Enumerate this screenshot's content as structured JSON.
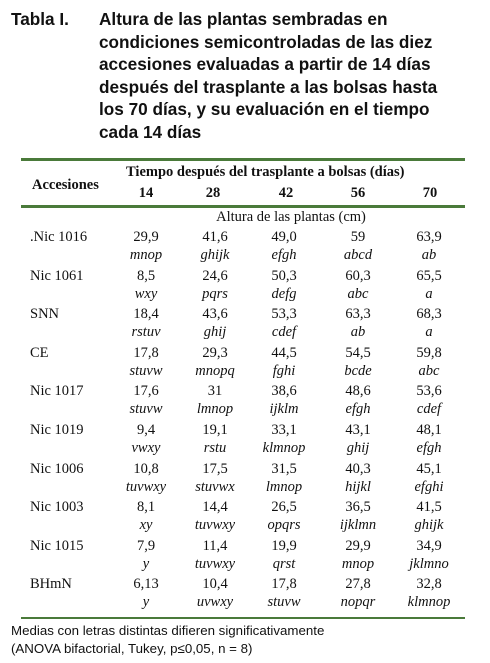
{
  "caption": {
    "label": "Tabla I.",
    "line1": "Altura de las plantas sembradas en",
    "line2": "condiciones semicontroladas de las diez",
    "line3": "accesiones evaluadas a partir de 14 días",
    "line4": "después del trasplante a las bolsas hasta",
    "line5": "los 70 días, y su evaluación en el tiempo",
    "line6": "cada 14 días"
  },
  "table": {
    "row_header": "Accesiones",
    "span_header": "Tiempo después del trasplante a bolsas (días)",
    "days": [
      "14",
      "28",
      "42",
      "56",
      "70"
    ],
    "subheader": "Altura de las plantas (cm)",
    "rows": [
      {
        "name": ".Nic 1016",
        "values": [
          "29,9",
          "41,6",
          "49,0",
          "59",
          "63,9"
        ],
        "letters": [
          "mnop",
          "ghijk",
          "efgh",
          "abcd",
          "ab"
        ]
      },
      {
        "name": "Nic 1061",
        "values": [
          "8,5",
          "24,6",
          "50,3",
          "60,3",
          "65,5"
        ],
        "letters": [
          "wxy",
          "pqrs",
          "defg",
          "abc",
          "a"
        ]
      },
      {
        "name": "SNN",
        "values": [
          "18,4",
          "43,6",
          "53,3",
          "63,3",
          "68,3"
        ],
        "letters": [
          "rstuv",
          "ghij",
          "cdef",
          "ab",
          "a"
        ]
      },
      {
        "name": "CE",
        "values": [
          "17,8",
          "29,3",
          "44,5",
          "54,5",
          "59,8"
        ],
        "letters": [
          "stuvw",
          "mnopq",
          "fghi",
          "bcde",
          "abc"
        ]
      },
      {
        "name": "Nic 1017",
        "values": [
          "17,6",
          "31",
          "38,6",
          "48,6",
          "53,6"
        ],
        "letters": [
          "stuvw",
          "lmnop",
          "ijklm",
          "efgh",
          "cdef"
        ]
      },
      {
        "name": "Nic 1019",
        "values": [
          "9,4",
          "19,1",
          "33,1",
          "43,1",
          "48,1"
        ],
        "letters": [
          "vwxy",
          "rstu",
          "klmnop",
          "ghij",
          "efgh"
        ]
      },
      {
        "name": "Nic 1006",
        "values": [
          "10,8",
          "17,5",
          "31,5",
          "40,3",
          "45,1"
        ],
        "letters": [
          "tuvwxy",
          "stuvwx",
          "lmnop",
          "hijkl",
          "efghi"
        ]
      },
      {
        "name": "Nic 1003",
        "values": [
          "8,1",
          "14,4",
          "26,5",
          "36,5",
          "41,5"
        ],
        "letters": [
          "xy",
          "tuvwxy",
          "opqrs",
          "ijklmn",
          "ghijk"
        ]
      },
      {
        "name": "Nic 1015",
        "values": [
          "7,9",
          "11,4",
          "19,9",
          "29,9",
          "34,9"
        ],
        "letters": [
          "y",
          "tuvwxy",
          "qrst",
          "mnop",
          "jklmno"
        ]
      },
      {
        "name": "BHmN",
        "values": [
          "6,13",
          "10,4",
          "17,8",
          "27,8",
          "32,8"
        ],
        "letters": [
          "y",
          "uvwxy",
          "stuvw",
          "nopqr",
          "klmnop"
        ]
      }
    ]
  },
  "note": {
    "line1": "Medias con letras distintas difieren significativamente",
    "line2": "(ANOVA bifactorial, Tukey, p≤0,05, n = 8)"
  }
}
